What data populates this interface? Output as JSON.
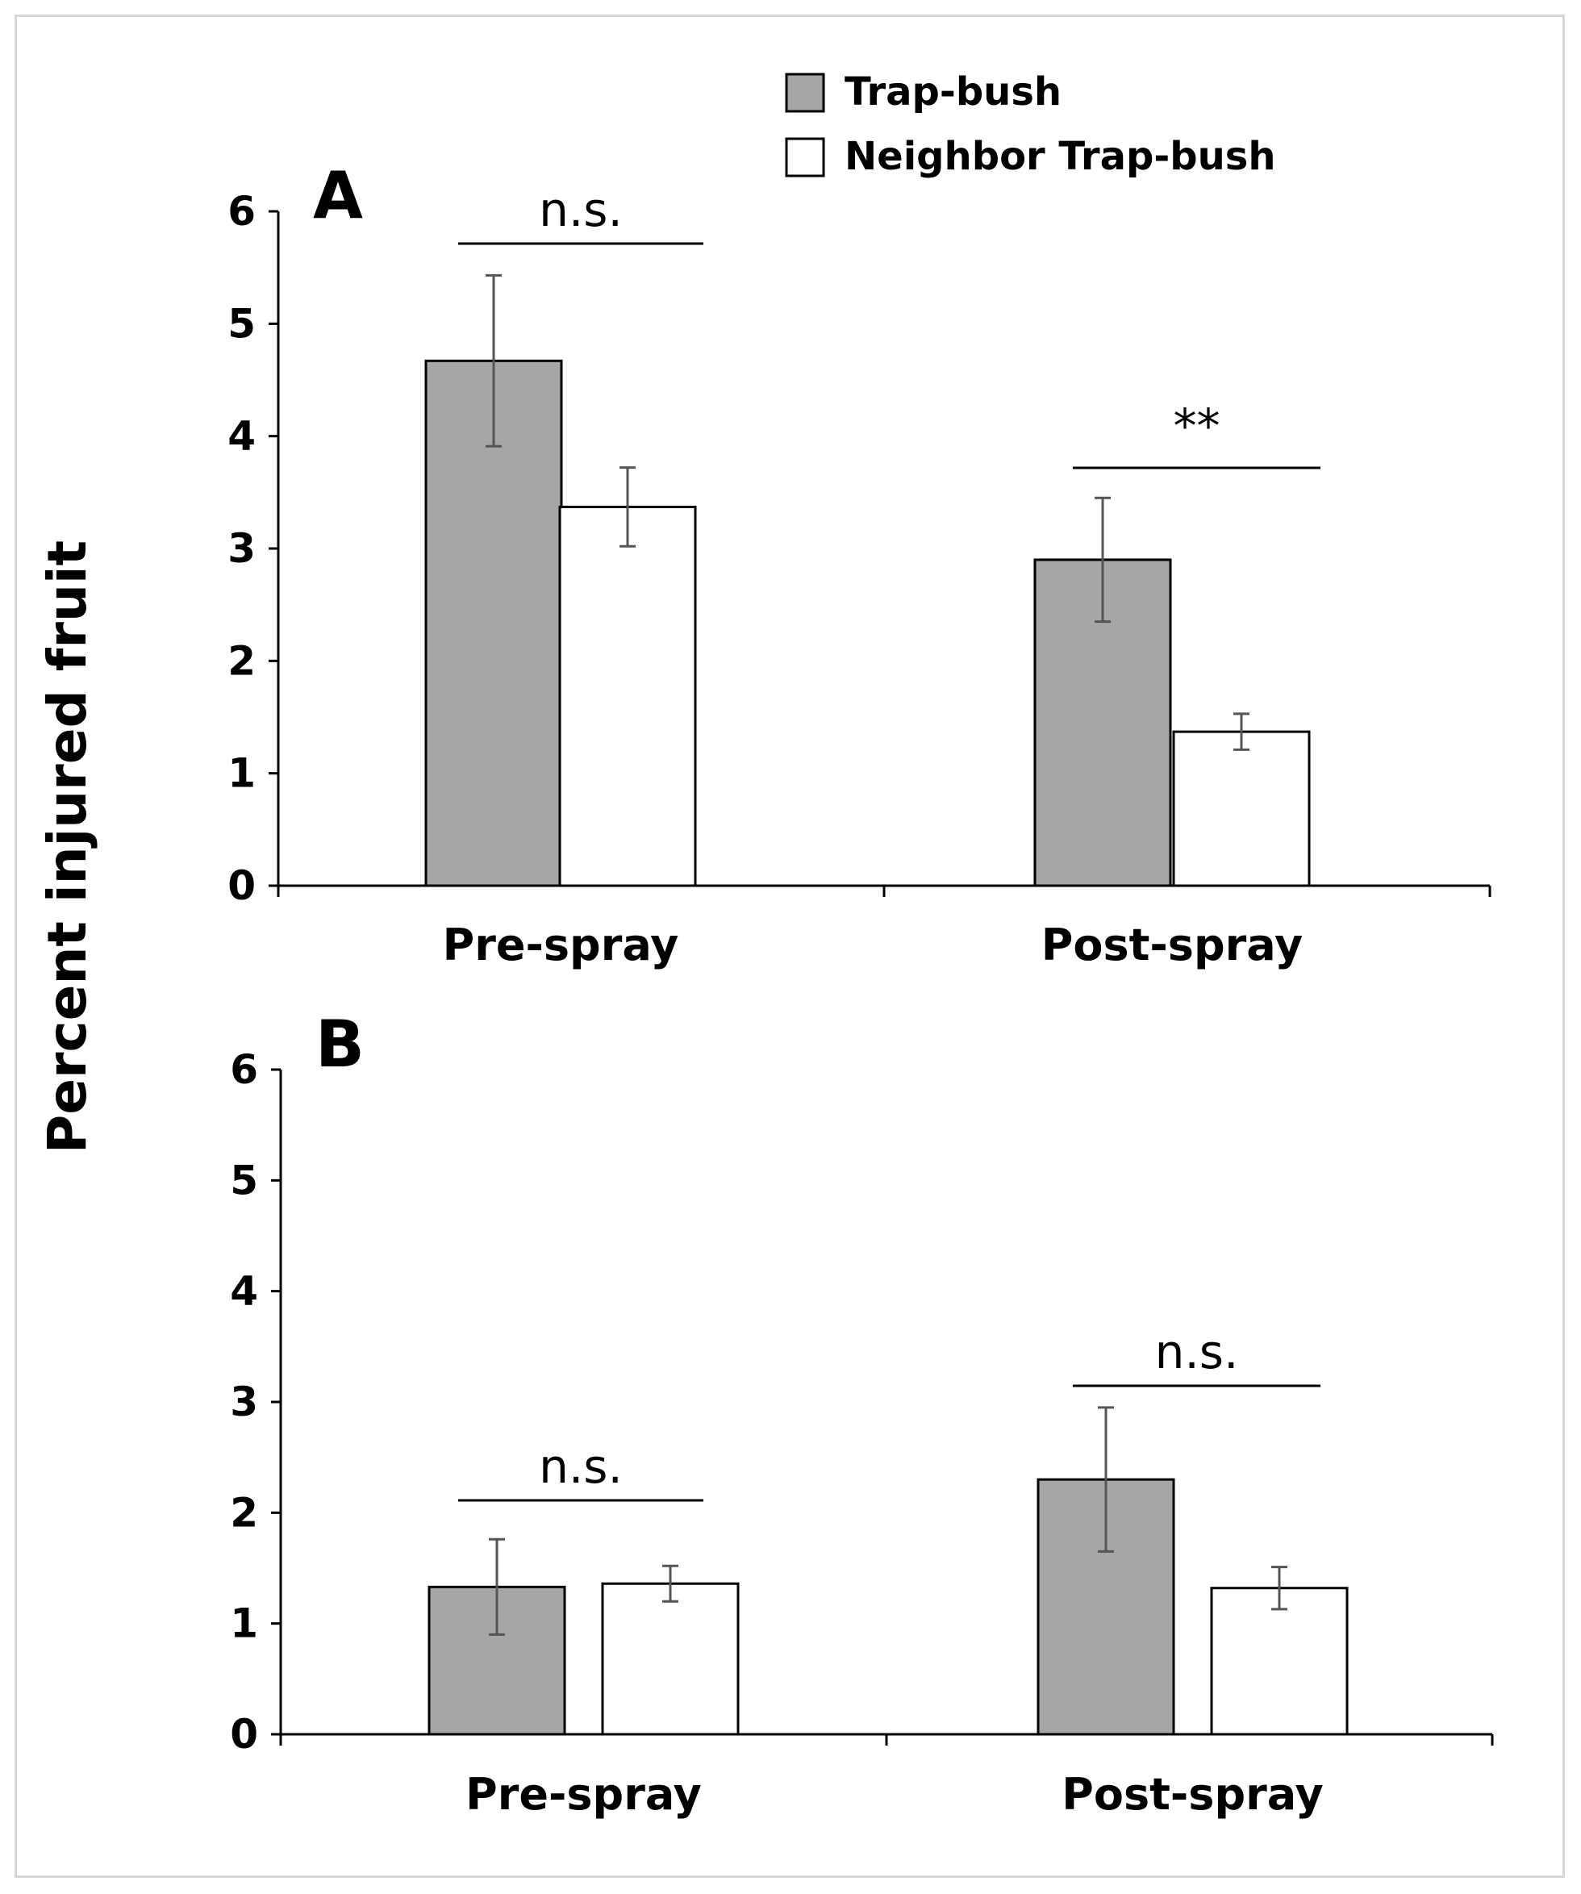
{
  "chart_data": {
    "type": "bar",
    "ylabel": "Percent injured fruit",
    "legend": {
      "placement": "top",
      "entries": [
        {
          "name": "Trap-bush",
          "color": "#a6a6a6"
        },
        {
          "name": "Neighbor Trap-bush",
          "color": "#ffffff"
        }
      ]
    },
    "panels": [
      {
        "label": "A",
        "categories": [
          "Pre-spray",
          "Post-spray"
        ],
        "ylim": [
          0,
          6
        ],
        "yticks": [
          "0",
          "1",
          "2",
          "3",
          "4",
          "5",
          "6"
        ],
        "series": [
          {
            "name": "Trap-bush",
            "values": [
              4.67,
              2.9
            ],
            "errors": [
              0.76,
              0.55
            ]
          },
          {
            "name": "Neighbor Trap-bush",
            "values": [
              3.37,
              1.37
            ],
            "errors": [
              0.35,
              0.16
            ]
          }
        ],
        "significance": [
          "n.s.",
          "**"
        ]
      },
      {
        "label": "B",
        "categories": [
          "Pre-spray",
          "Post-spray"
        ],
        "ylim": [
          0,
          6
        ],
        "yticks": [
          "0",
          "1",
          "2",
          "3",
          "4",
          "5",
          "6"
        ],
        "series": [
          {
            "name": "Trap-bush",
            "values": [
              1.33,
              2.3
            ],
            "errors": [
              0.43,
              0.65
            ]
          },
          {
            "name": "Neighbor Trap-bush",
            "values": [
              1.36,
              1.32
            ],
            "errors": [
              0.16,
              0.19
            ]
          }
        ],
        "significance": [
          "n.s.",
          "n.s."
        ]
      }
    ],
    "colors": {
      "trap_bush": "#a6a6a6",
      "neighbor": "#ffffff",
      "error_bar": "#555555"
    },
    "grid": false
  }
}
